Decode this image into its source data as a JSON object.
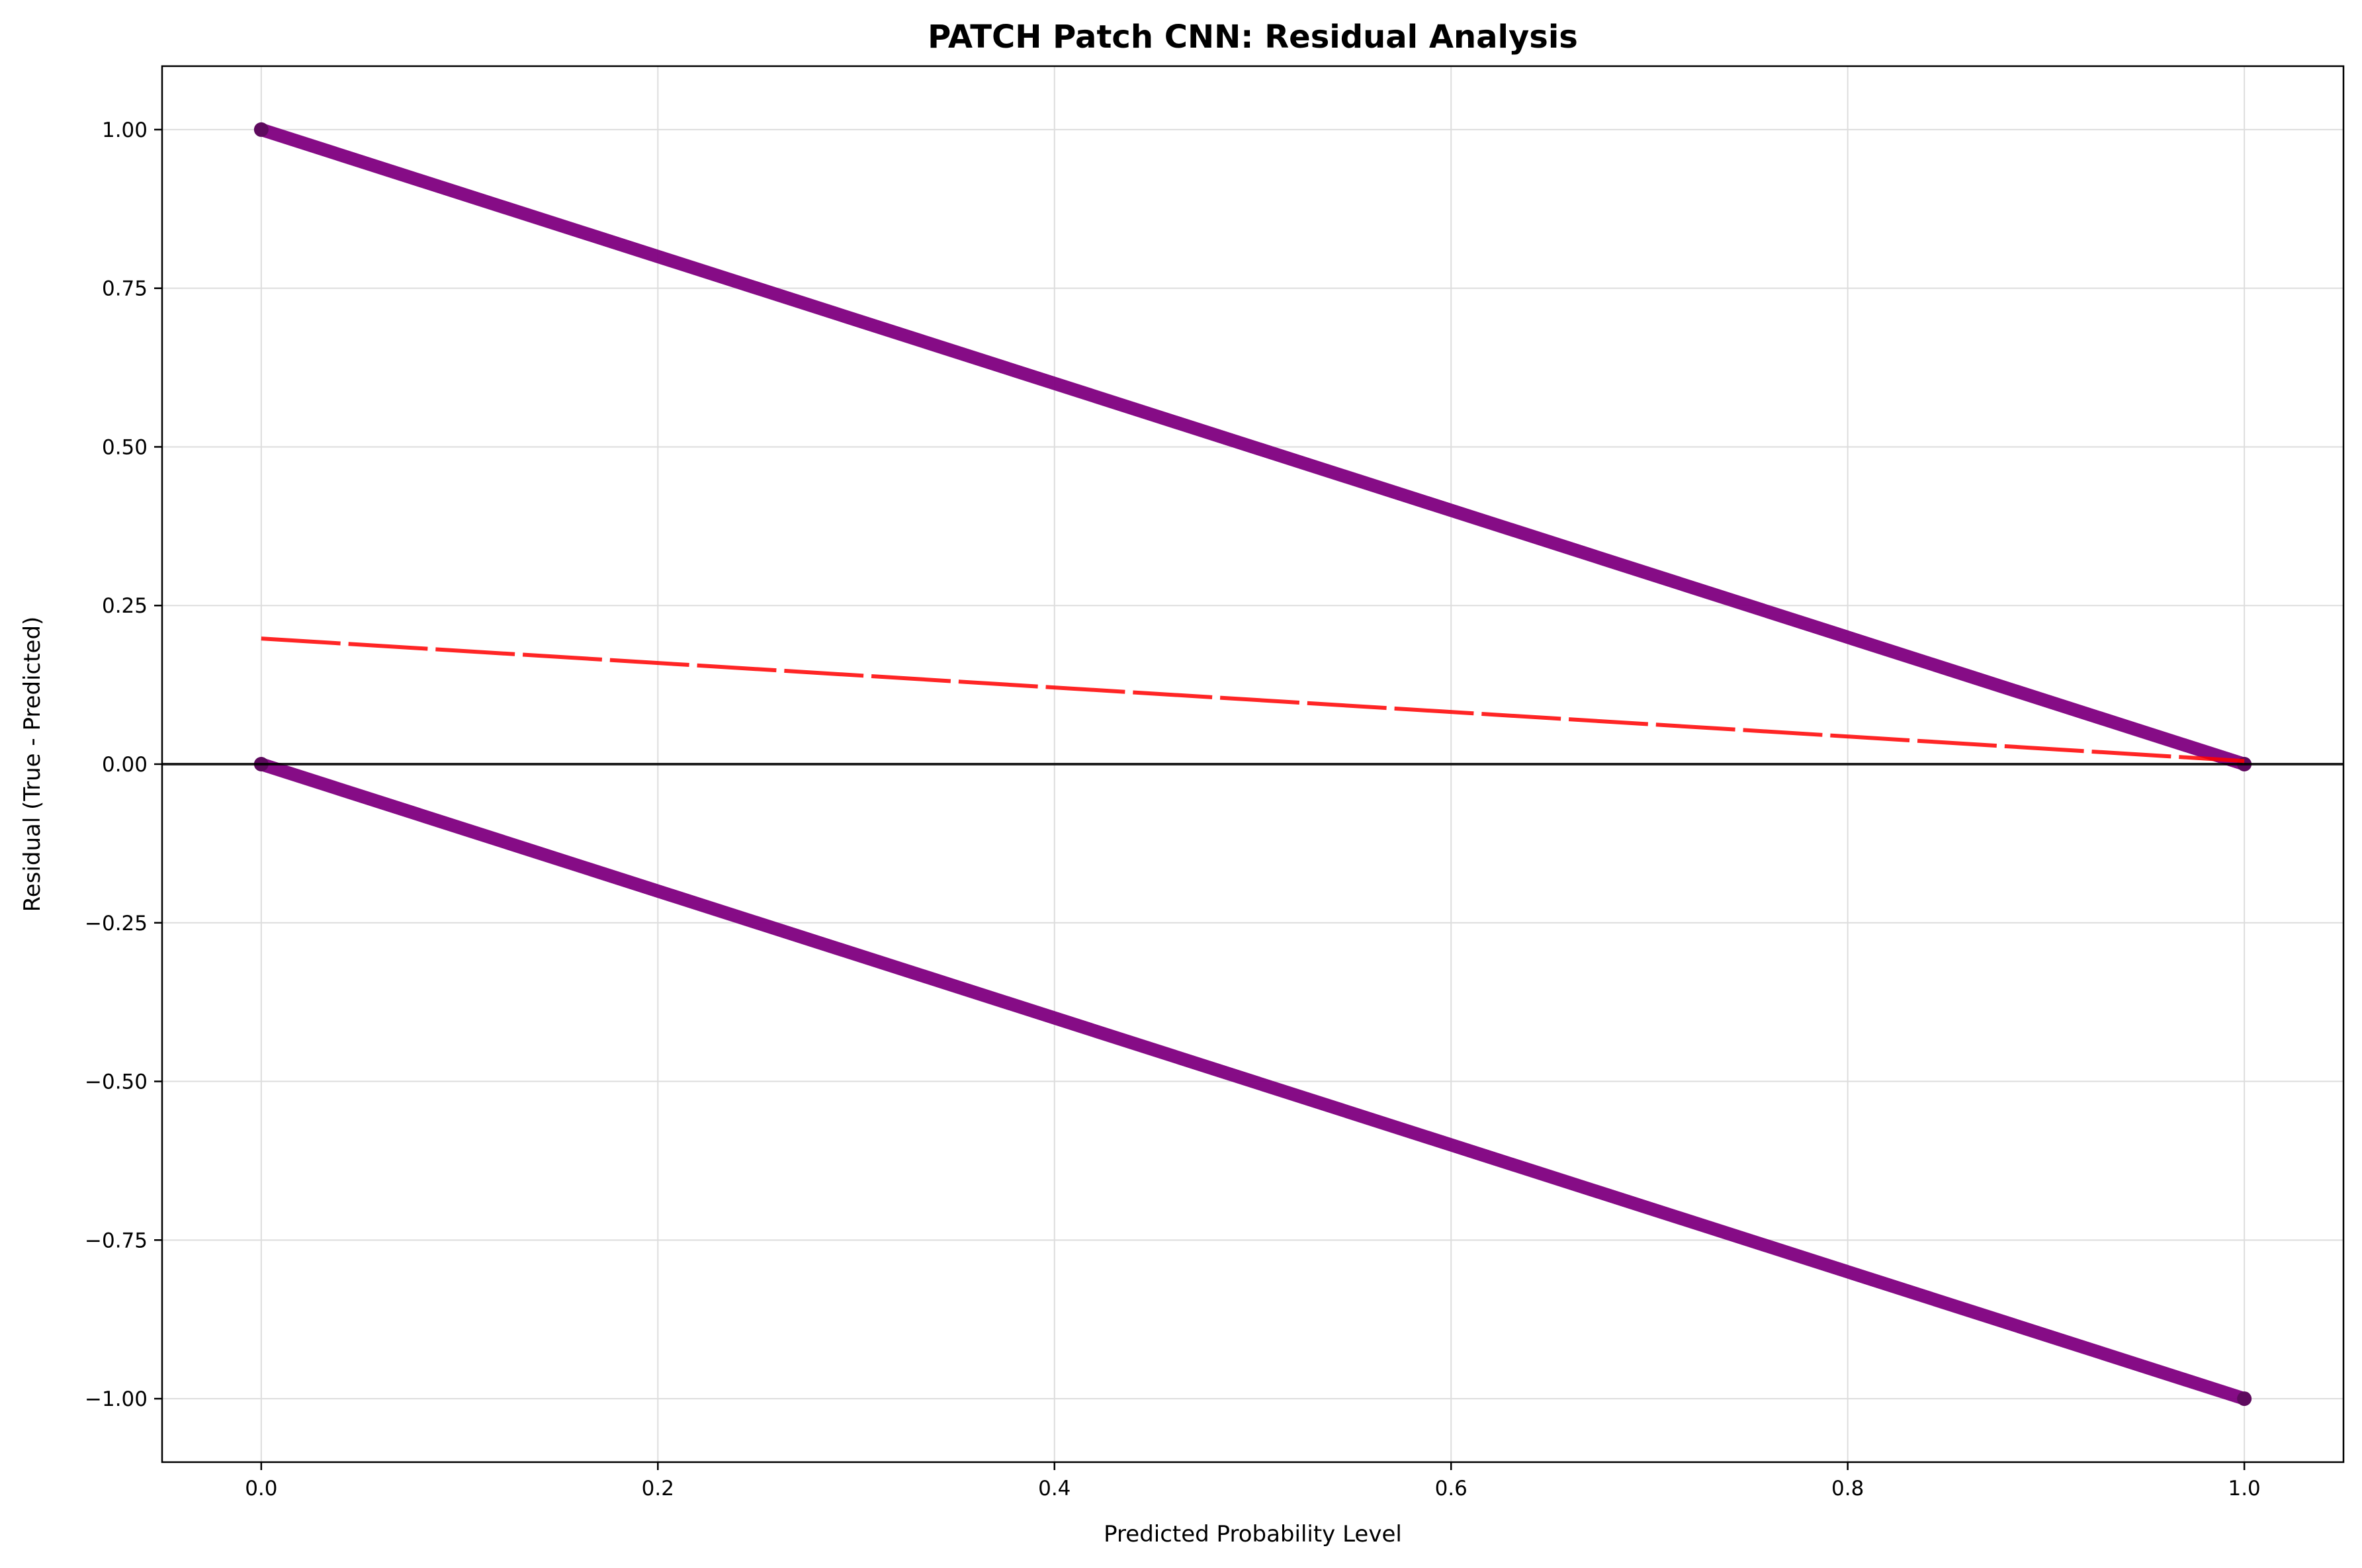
{
  "chart_data": {
    "type": "scatter",
    "title": "PATCH Patch CNN: Residual Analysis",
    "xlabel": "Predicted Probability Level",
    "ylabel": "Residual (True - Predicted)",
    "xlim": [
      -0.05,
      1.05
    ],
    "ylim": [
      -1.1,
      1.1
    ],
    "xticks": [
      0.0,
      0.2,
      0.4,
      0.6,
      0.8,
      1.0
    ],
    "xtick_labels": [
      "0.0",
      "0.2",
      "0.4",
      "0.6",
      "0.8",
      "1.0"
    ],
    "yticks": [
      1.0,
      0.75,
      0.5,
      0.25,
      0.0,
      -0.25,
      -0.5,
      -0.75,
      -1.0
    ],
    "ytick_labels": [
      "1.00",
      "0.75",
      "0.50",
      "0.25",
      "0.00",
      "−0.25",
      "−0.50",
      "−0.75",
      "−1.00"
    ],
    "grid": true,
    "series": [
      {
        "kind": "scatter-band",
        "color": "#800080",
        "x": [
          0.0,
          1.0
        ],
        "y": [
          1.0,
          0.0
        ]
      },
      {
        "kind": "scatter-band",
        "color": "#800080",
        "x": [
          0.0,
          1.0
        ],
        "y": [
          0.0,
          -1.0
        ]
      },
      {
        "kind": "trend-dashed",
        "color": "#ff0000",
        "x": [
          0.0,
          1.0
        ],
        "y": [
          0.198,
          0.005
        ]
      }
    ],
    "reference_line": {
      "y": 0.0,
      "color": "#000000"
    }
  }
}
